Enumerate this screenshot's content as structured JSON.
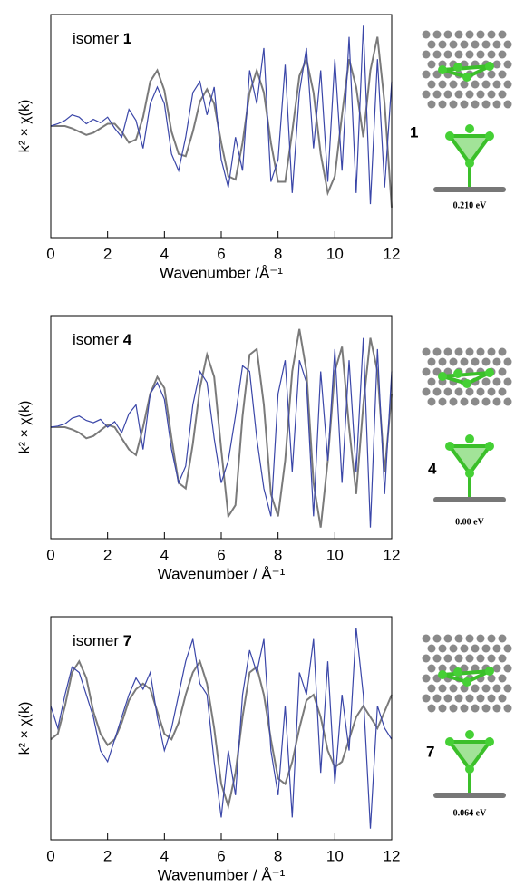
{
  "chart_data": [
    {
      "type": "line",
      "annotation": {
        "text": "isomer",
        "number": "1"
      },
      "xlabel": "Wavenumber /Å⁻¹",
      "ylabel": "k² × χ(k)",
      "x": [
        0,
        0.25,
        0.5,
        0.75,
        1,
        1.25,
        1.5,
        1.75,
        2,
        2.25,
        2.5,
        2.75,
        3,
        3.25,
        3.5,
        3.75,
        4,
        4.25,
        4.5,
        4.75,
        5,
        5.25,
        5.5,
        5.75,
        6,
        6.25,
        6.5,
        6.75,
        7,
        7.25,
        7.5,
        7.75,
        8,
        8.25,
        8.5,
        8.75,
        9,
        9.25,
        9.5,
        9.75,
        10,
        10.25,
        10.5,
        10.75,
        11,
        11.25,
        11.5,
        11.75,
        12
      ],
      "xlim": [
        0,
        12
      ],
      "xticks": [
        0,
        2,
        4,
        6,
        8,
        10,
        12
      ],
      "ylim": [
        -1,
        1
      ],
      "series": [
        {
          "color": "#7a7a7a",
          "values": [
            0,
            0,
            0,
            -0.02,
            -0.05,
            -0.08,
            -0.06,
            -0.02,
            0.02,
            0.02,
            -0.05,
            -0.15,
            -0.12,
            0.08,
            0.4,
            0.5,
            0.32,
            -0.05,
            -0.25,
            -0.27,
            -0.05,
            0.22,
            0.33,
            0.2,
            -0.15,
            -0.45,
            -0.48,
            -0.15,
            0.3,
            0.5,
            0.3,
            -0.15,
            -0.5,
            -0.5,
            -0.05,
            0.45,
            0.6,
            0.3,
            -0.25,
            -0.6,
            -0.45,
            0.1,
            0.6,
            0.35,
            -0.1,
            0.5,
            0.8,
            0.2,
            -0.73
          ]
        },
        {
          "color": "#3a46a8",
          "values": [
            0,
            0.02,
            0.05,
            0.1,
            0.08,
            0.02,
            0.06,
            0.03,
            0.08,
            -0.02,
            -0.1,
            0.15,
            0.05,
            -0.2,
            0.2,
            0.35,
            0.2,
            -0.25,
            -0.4,
            -0.1,
            0.3,
            0.4,
            0.1,
            0.35,
            -0.3,
            -0.55,
            -0.1,
            -0.4,
            0.5,
            0.2,
            0.7,
            -0.5,
            -0.3,
            0.55,
            -0.6,
            0.3,
            0.7,
            -0.2,
            0.5,
            -0.5,
            0.6,
            -0.4,
            0.8,
            -0.6,
            0.9,
            -0.7,
            0.6,
            -0.55,
            0.4
          ]
        }
      ]
    },
    {
      "type": "line",
      "annotation": {
        "text": "isomer",
        "number": "4"
      },
      "xlabel": "Wavenumber / Å⁻¹",
      "ylabel": "k² × χ(k)",
      "x": [
        0,
        0.25,
        0.5,
        0.75,
        1,
        1.25,
        1.5,
        1.75,
        2,
        2.25,
        2.5,
        2.75,
        3,
        3.25,
        3.5,
        3.75,
        4,
        4.25,
        4.5,
        4.75,
        5,
        5.25,
        5.5,
        5.75,
        6,
        6.25,
        6.5,
        6.75,
        7,
        7.25,
        7.5,
        7.75,
        8,
        8.25,
        8.5,
        8.75,
        9,
        9.25,
        9.5,
        9.75,
        10,
        10.25,
        10.5,
        10.75,
        11,
        11.25,
        11.5,
        11.75,
        12
      ],
      "xlim": [
        0,
        12
      ],
      "xticks": [
        0,
        2,
        4,
        6,
        8,
        10,
        12
      ],
      "ylim": [
        -1,
        1
      ],
      "series": [
        {
          "color": "#7a7a7a",
          "values": [
            0,
            0,
            0,
            -0.02,
            -0.05,
            -0.1,
            -0.08,
            -0.03,
            0.02,
            0,
            -0.1,
            -0.2,
            -0.25,
            0,
            0.3,
            0.45,
            0.35,
            -0.1,
            -0.5,
            -0.55,
            -0.15,
            0.35,
            0.65,
            0.45,
            -0.2,
            -0.8,
            -0.7,
            0.1,
            0.65,
            0.7,
            0.2,
            -0.6,
            -0.8,
            -0.3,
            0.5,
            0.88,
            0.5,
            -0.5,
            -0.9,
            -0.3,
            0.5,
            0.72,
            0,
            -0.6,
            0.2,
            0.8,
            0.5,
            -0.4,
            0.3
          ]
        },
        {
          "color": "#3a46a8",
          "values": [
            0,
            0.01,
            0.03,
            0.08,
            0.1,
            0.06,
            0.04,
            0.07,
            0,
            0.05,
            -0.05,
            0.12,
            0.2,
            -0.2,
            0.3,
            0.4,
            0.25,
            -0.2,
            -0.5,
            -0.35,
            0.2,
            0.5,
            0.4,
            -0.1,
            -0.5,
            -0.3,
            0.1,
            0.55,
            0.5,
            -0.1,
            -0.55,
            -0.8,
            0.3,
            0.6,
            -0.4,
            0.6,
            0.4,
            -0.8,
            0.5,
            -0.3,
            0.7,
            -0.5,
            0.6,
            -0.4,
            0.8,
            -0.9,
            0.7,
            -0.6,
            0.5
          ]
        }
      ]
    },
    {
      "type": "line",
      "annotation": {
        "text": "isomer",
        "number": "7"
      },
      "xlabel": "Wavenumber / Å⁻¹",
      "ylabel": "k² × χ(k)",
      "x": [
        0,
        0.25,
        0.5,
        0.75,
        1,
        1.25,
        1.5,
        1.75,
        2,
        2.25,
        2.5,
        2.75,
        3,
        3.25,
        3.5,
        3.75,
        4,
        4.25,
        4.5,
        4.75,
        5,
        5.25,
        5.5,
        5.75,
        6,
        6.25,
        6.5,
        6.75,
        7,
        7.25,
        7.5,
        7.75,
        8,
        8.25,
        8.5,
        8.75,
        9,
        9.25,
        9.5,
        9.75,
        10,
        10.25,
        10.5,
        10.75,
        11,
        11.25,
        11.5,
        11.75,
        12
      ],
      "xlim": [
        0,
        12
      ],
      "xticks": [
        0,
        2,
        4,
        6,
        8,
        10,
        12
      ],
      "ylim": [
        -1,
        1
      ],
      "series": [
        {
          "color": "#7a7a7a",
          "values": [
            -0.1,
            -0.05,
            0.2,
            0.5,
            0.6,
            0.45,
            0.15,
            -0.05,
            -0.15,
            -0.1,
            0.05,
            0.25,
            0.35,
            0.4,
            0.35,
            0.15,
            -0.05,
            -0.1,
            0.05,
            0.3,
            0.5,
            0.6,
            0.4,
            0,
            -0.5,
            -0.7,
            -0.4,
            0.1,
            0.5,
            0.55,
            0.3,
            -0.1,
            -0.45,
            -0.5,
            -0.3,
            0,
            0.25,
            0.3,
            0.1,
            -0.2,
            -0.35,
            -0.3,
            -0.1,
            0.1,
            0.2,
            0.1,
            0,
            0.15,
            0.3
          ]
        },
        {
          "color": "#3a46a8",
          "values": [
            0.2,
            0,
            0.3,
            0.55,
            0.5,
            0.3,
            0.1,
            -0.2,
            -0.3,
            -0.1,
            0.1,
            0.3,
            0.45,
            0.35,
            0.5,
            0.1,
            -0.2,
            0,
            0.3,
            0.6,
            0.8,
            0.4,
            0.3,
            -0.3,
            -0.8,
            -0.2,
            -0.6,
            0.3,
            0.7,
            0.5,
            0.8,
            -0.2,
            -0.6,
            0.2,
            -0.8,
            0.5,
            0.3,
            0.8,
            -0.4,
            0.6,
            -0.5,
            0.3,
            -0.2,
            0.9,
            0.3,
            -0.9,
            0.2,
            0,
            -0.1
          ]
        }
      ]
    }
  ],
  "structures": [
    {
      "label": "1",
      "energy": "0.210 eV"
    },
    {
      "label": "4",
      "energy": "0.00 eV"
    },
    {
      "label": "7",
      "energy": "0.064 eV"
    }
  ]
}
